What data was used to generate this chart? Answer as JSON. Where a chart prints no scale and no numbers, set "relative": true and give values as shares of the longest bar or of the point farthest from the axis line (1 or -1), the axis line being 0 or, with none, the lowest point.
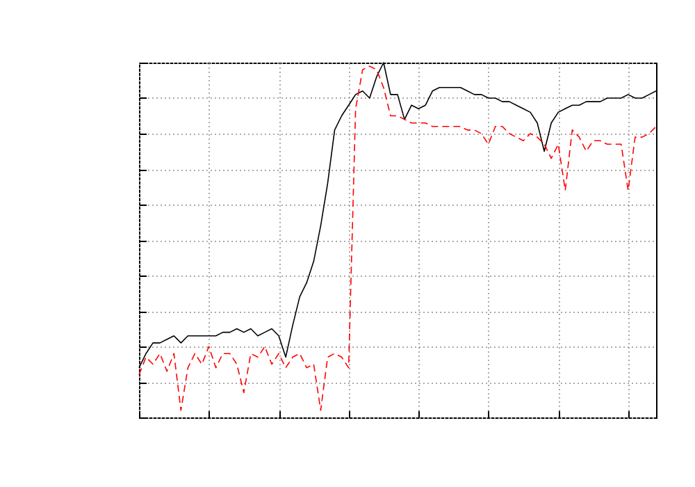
{
  "chart_data": {
    "type": "line",
    "relative": true,
    "grid": true,
    "categories": [
      null,
      null,
      null,
      null,
      null,
      null,
      null,
      null,
      null,
      null,
      null,
      null,
      null,
      null,
      null,
      null,
      null,
      null,
      null,
      null,
      null,
      null,
      null,
      null,
      null,
      null,
      null,
      null,
      null,
      null,
      null,
      null,
      null,
      null,
      null,
      null,
      null,
      null,
      null,
      null,
      null,
      null,
      null,
      null,
      null,
      null,
      null,
      null,
      null,
      null,
      null,
      null,
      null,
      null,
      null,
      null,
      null,
      null,
      null,
      null,
      null,
      null,
      null,
      null,
      null,
      null,
      null,
      null,
      null,
      null,
      null,
      null,
      null,
      null,
      null
    ],
    "series": [
      {
        "color": "#000000",
        "line_style": "solid",
        "values": [
          0.14,
          0.18,
          0.21,
          0.21,
          0.22,
          0.23,
          0.21,
          0.23,
          0.23,
          0.23,
          0.23,
          0.23,
          0.24,
          0.24,
          0.25,
          0.24,
          0.25,
          0.23,
          0.24,
          0.25,
          0.23,
          0.17,
          0.26,
          0.34,
          0.38,
          0.44,
          0.54,
          0.66,
          0.81,
          0.85,
          0.88,
          0.91,
          0.92,
          0.9,
          0.96,
          1,
          0.91,
          0.91,
          0.84,
          0.88,
          0.87,
          0.88,
          0.92,
          0.93,
          0.93,
          0.93,
          0.93,
          0.92,
          0.91,
          0.91,
          0.9,
          0.9,
          0.89,
          0.89,
          0.88,
          0.87,
          0.86,
          0.83,
          0.75,
          0.83,
          0.86,
          0.87,
          0.88,
          0.88,
          0.89,
          0.89,
          0.89,
          0.9,
          0.9,
          0.9,
          0.91,
          0.9,
          0.9,
          0.91,
          0.92
        ]
      },
      {
        "color": "#ff0000",
        "line_style": "dashed",
        "values": [
          0.12,
          0.17,
          0.15,
          0.18,
          0.13,
          0.18,
          0.02,
          0.14,
          0.18,
          0.15,
          0.2,
          0.14,
          0.18,
          0.18,
          0.15,
          0.07,
          0.18,
          0.17,
          0.2,
          0.15,
          0.18,
          0.14,
          0.17,
          0.18,
          0.14,
          0.15,
          0.02,
          0.17,
          0.18,
          0.17,
          0.14,
          0.87,
          0.98,
          0.99,
          0.98,
          0.93,
          0.85,
          0.85,
          0.84,
          0.83,
          0.83,
          0.83,
          0.82,
          0.82,
          0.82,
          0.82,
          0.82,
          0.81,
          0.81,
          0.8,
          0.77,
          0.82,
          0.82,
          0.8,
          0.79,
          0.78,
          0.8,
          0.79,
          0.77,
          0.73,
          0.77,
          0.64,
          0.81,
          0.79,
          0.75,
          0.78,
          0.78,
          0.77,
          0.77,
          0.77,
          0.64,
          0.79,
          0.79,
          0.8,
          0.82
        ]
      }
    ]
  }
}
